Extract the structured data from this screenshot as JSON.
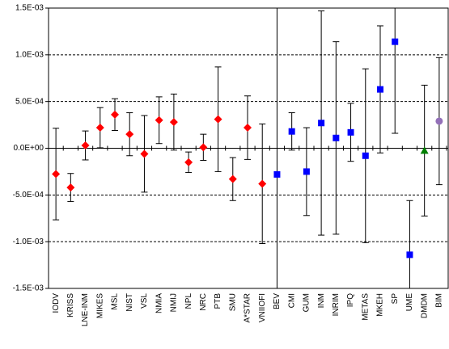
{
  "chart_data": {
    "type": "errorbar",
    "categories": [
      "IODV",
      "KRISS",
      "LNE-INM",
      "MIKES",
      "MSL",
      "NIST",
      "VSL",
      "NMIA",
      "NMIJ",
      "NPL",
      "NRC",
      "PTB",
      "SMU",
      "A*STAR",
      "VNIIOFI",
      "BEV",
      "CMI",
      "GUM",
      "INM",
      "INRIM",
      "IPQ",
      "METAS",
      "MKEH",
      "SP",
      "UME",
      "DMDM",
      "BIM"
    ],
    "series": [
      {
        "color": "#ff0000",
        "marker": "diamond",
        "values": [
          -0.000276,
          -0.00042,
          3e-05,
          0.00022,
          0.00036,
          0.00015,
          -6e-05,
          0.0003,
          0.00028,
          -0.00015,
          1e-05,
          0.00031,
          -0.00033,
          0.00022,
          -0.00038,
          null,
          null,
          null,
          null,
          null,
          null,
          null,
          null,
          null,
          null,
          null,
          null
        ],
        "errors": [
          0.00049,
          0.00015,
          0.000155,
          0.000215,
          0.00017,
          0.00023,
          0.00041,
          0.00025,
          0.0003,
          0.00011,
          0.00014,
          0.00056,
          0.00023,
          0.00034,
          0.00064,
          null,
          null,
          null,
          null,
          null,
          null,
          null,
          null,
          null,
          null,
          null,
          null
        ]
      },
      {
        "color": "#0000ff",
        "marker": "square",
        "values": [
          null,
          null,
          null,
          null,
          null,
          null,
          null,
          null,
          null,
          null,
          null,
          null,
          null,
          null,
          null,
          -0.00028,
          0.00018,
          -0.00025,
          0.00027,
          0.00011,
          0.00017,
          -8e-05,
          0.00063,
          0.00114,
          -0.00114,
          null,
          null
        ],
        "errors": [
          null,
          null,
          null,
          null,
          null,
          null,
          null,
          null,
          null,
          null,
          null,
          null,
          null,
          null,
          null,
          0.002,
          0.0002,
          0.00047,
          0.0012,
          0.00103,
          0.00031,
          0.00093,
          0.00068,
          0.00098,
          0.00058,
          null,
          null
        ]
      },
      {
        "color": "#008000",
        "marker": "triangle",
        "values": [
          null,
          null,
          null,
          null,
          null,
          null,
          null,
          null,
          null,
          null,
          null,
          null,
          null,
          null,
          null,
          null,
          null,
          null,
          null,
          null,
          null,
          null,
          null,
          null,
          null,
          -2.5e-05,
          null
        ],
        "errors": [
          null,
          null,
          null,
          null,
          null,
          null,
          null,
          null,
          null,
          null,
          null,
          null,
          null,
          null,
          null,
          null,
          null,
          null,
          null,
          null,
          null,
          null,
          null,
          null,
          null,
          0.0007,
          null
        ]
      },
      {
        "color": "#9370b8",
        "marker": "circle",
        "values": [
          null,
          null,
          null,
          null,
          null,
          null,
          null,
          null,
          null,
          null,
          null,
          null,
          null,
          null,
          null,
          null,
          null,
          null,
          null,
          null,
          null,
          null,
          null,
          null,
          null,
          null,
          0.00029
        ],
        "errors": [
          null,
          null,
          null,
          null,
          null,
          null,
          null,
          null,
          null,
          null,
          null,
          null,
          null,
          null,
          null,
          null,
          null,
          null,
          null,
          null,
          null,
          null,
          null,
          null,
          null,
          null,
          0.00068
        ]
      }
    ],
    "ylim": [
      -0.0015,
      0.0015
    ],
    "yticks": [
      {
        "value": -0.0015,
        "label": "-1.5E-03"
      },
      {
        "value": -0.001,
        "label": "-1.0E-03"
      },
      {
        "value": -0.0005,
        "label": "-5.0E-04"
      },
      {
        "value": 0,
        "label": "0.0E+00"
      },
      {
        "value": 0.0005,
        "label": "5.0E-04"
      },
      {
        "value": 0.001,
        "label": "1.0E-03"
      },
      {
        "value": 0.0015,
        "label": "1.5E-03"
      }
    ],
    "grid": true
  }
}
